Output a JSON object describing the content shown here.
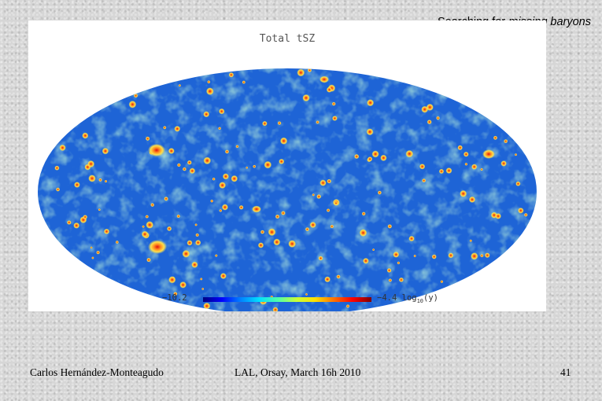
{
  "slide": {
    "heading_plain": "Searching for ",
    "heading_italic": "missing baryons"
  },
  "figure": {
    "title": "Total tSZ",
    "colorbar": {
      "min_label": "−10.2",
      "max_value": "−4.4",
      "max_unit_prefix": "log",
      "max_unit_sub": "10",
      "max_unit_suffix": "(y)",
      "colors": [
        "#00007f",
        "#0000ff",
        "#0080ff",
        "#00e0ff",
        "#50ffa8",
        "#c8ff38",
        "#ffe000",
        "#ff7000",
        "#ff0000",
        "#800000"
      ]
    },
    "map_colors": {
      "background": "#1e64d6",
      "mid": "#34c0ea",
      "filament": "#8ee8a0",
      "hot": "#ffe04a",
      "hotter": "#ff8a1e",
      "hottest": "#e01010"
    }
  },
  "footer": {
    "author": "Carlos Hernández-Monteagudo",
    "venue": "LAL, Orsay, March 16h 2010",
    "page_number": "41"
  }
}
